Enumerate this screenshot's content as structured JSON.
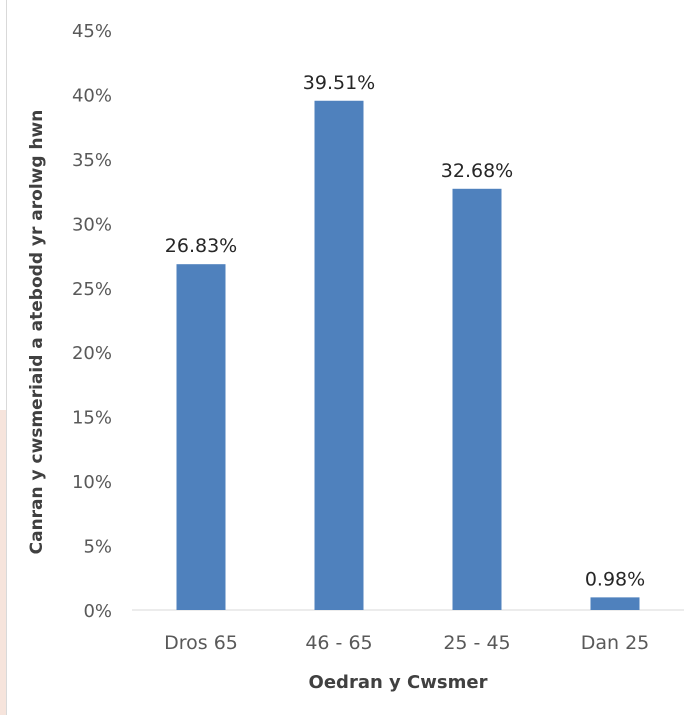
{
  "chart_data": {
    "type": "bar",
    "categories": [
      "Dros 65",
      "46 - 65",
      "25 - 45",
      "Dan 25"
    ],
    "values": [
      26.83,
      39.51,
      32.68,
      0.98
    ],
    "value_labels": [
      "26.83%",
      "39.51%",
      "32.68%",
      "0.98%"
    ],
    "ylim": [
      0,
      45
    ],
    "yticks": [
      0,
      5,
      10,
      15,
      20,
      25,
      30,
      35,
      40,
      45
    ],
    "ytick_suffix": "%",
    "xlabel": "Oedran y Cwsmer",
    "ylabel": "Canran y cwsmeriaid a atebodd yr arolwg hwn",
    "bar_color": "#4f81bd",
    "grid": false,
    "legend": "none"
  }
}
